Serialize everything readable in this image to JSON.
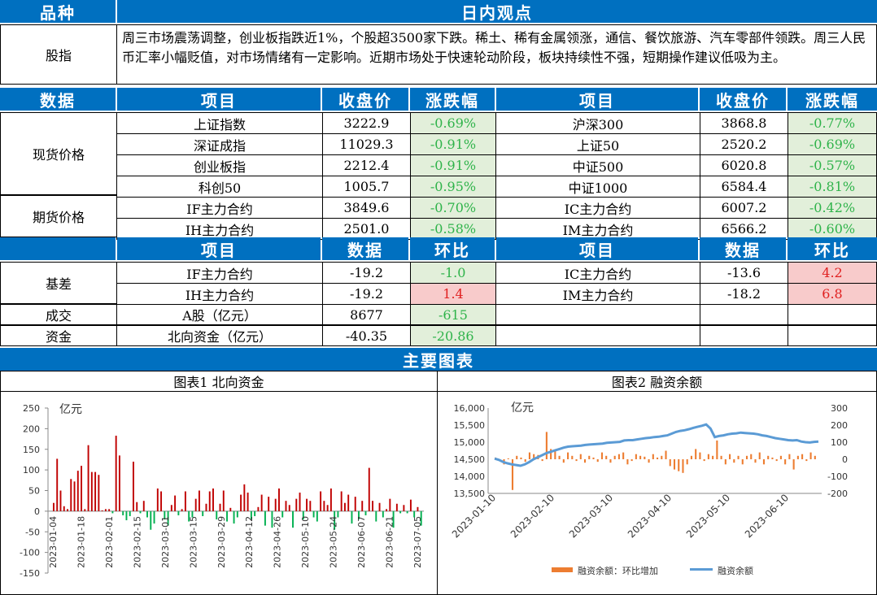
{
  "header": {
    "left": "品种",
    "right": "日内观点"
  },
  "view": {
    "label": "股指",
    "text": "周三市场震荡调整，创业板指跌近1%，个股超3500家下跌。稀土、稀有金属领涨，通信、餐饮旅游、汽车零部件领跌。周三人民币汇率小幅贬值，对市场情绪有一定影响。近期市场处于快速轮动阶段，板块持续性不强，短期操作建议低吸为主。"
  },
  "table1": {
    "head": [
      "数据",
      "项目",
      "收盘价",
      "涨跌幅",
      "项目",
      "收盘价",
      "涨跌幅"
    ],
    "group_spot": "现货价格",
    "group_fut": "期货价格",
    "rows": [
      [
        "上证指数",
        "3222.9",
        "-0.69%",
        "沪深300",
        "3868.8",
        "-0.77%"
      ],
      [
        "深证成指",
        "11029.3",
        "-0.91%",
        "上证50",
        "2520.2",
        "-0.69%"
      ],
      [
        "创业板指",
        "2212.4",
        "-0.91%",
        "中证500",
        "6020.8",
        "-0.57%"
      ],
      [
        "科创50",
        "1005.7",
        "-0.95%",
        "中证1000",
        "6584.4",
        "-0.81%"
      ],
      [
        "IF主力合约",
        "3849.6",
        "-0.70%",
        "IC主力合约",
        "6007.2",
        "-0.42%"
      ],
      [
        "IH主力合约",
        "2501.0",
        "-0.58%",
        "IM主力合约",
        "6566.2",
        "-0.60%"
      ]
    ]
  },
  "table2": {
    "head": [
      "项目",
      "数据",
      "环比",
      "项目",
      "数据",
      "环比"
    ],
    "basis_label": "基差",
    "trade_label": "成交",
    "fund_label": "资金",
    "basis": [
      [
        "IF主力合约",
        "-19.2",
        "-1.0",
        "IC主力合约",
        "-13.6",
        "4.2"
      ],
      [
        "IH主力合约",
        "-19.2",
        "1.4",
        "IM主力合约",
        "-18.2",
        "6.8"
      ]
    ],
    "trade": [
      "A股（亿元）",
      "8677",
      "-615"
    ],
    "fund": [
      "北向资金（亿元）",
      "-40.35",
      "-20.86"
    ]
  },
  "charts_header": "主要图表",
  "chart_titles": [
    "图表1 北向资金",
    "图表2 融资余额"
  ],
  "colors": {
    "blue": "#0070c0",
    "red_bar": "#c00000",
    "green_bar": "#00b050",
    "orange": "#ed7d31",
    "line_blue": "#5b9bd5"
  },
  "chart_data": [
    {
      "type": "bar",
      "title": "图表1 北向资金",
      "ylabel": "亿元",
      "ylim": [
        -150,
        250
      ],
      "yticks": [
        250,
        200,
        150,
        100,
        50,
        0,
        -50,
        -100,
        -150
      ],
      "xticks": [
        "2023-01-04",
        "2023-01-18",
        "2023-02-01",
        "2023-02-15",
        "2023-03-01",
        "2023-03-15",
        "2023-03-29",
        "2023-04-12",
        "2023-04-26",
        "2023-05-10",
        "2023-05-24",
        "2023-06-07",
        "2023-06-21",
        "2023-07-05"
      ],
      "values": [
        20,
        127,
        50,
        12,
        5,
        78,
        72,
        98,
        110,
        5,
        160,
        95,
        95,
        88,
        2,
        5,
        5,
        -5,
        183,
        135,
        -10,
        -22,
        -12,
        120,
        22,
        -5,
        25,
        -15,
        -45,
        -30,
        55,
        48,
        -20,
        -35,
        15,
        38,
        -10,
        5,
        48,
        -25,
        -15,
        30,
        50,
        -12,
        18,
        48,
        55,
        -20,
        18,
        50,
        -25,
        8,
        -30,
        -15,
        40,
        65,
        45,
        -20,
        -12,
        10,
        40,
        -35,
        35,
        -40,
        30,
        55,
        -15,
        25,
        15,
        -40,
        30,
        45,
        -20,
        30,
        25,
        -15,
        -25,
        48,
        25,
        15,
        55,
        -45,
        -15,
        48,
        20,
        40,
        -30,
        35,
        -20,
        25,
        -10,
        105,
        25,
        -25,
        20,
        -15,
        5,
        30,
        -40,
        18,
        -5,
        15,
        -5,
        28,
        -15,
        10,
        -35
      ]
    },
    {
      "type": "line",
      "title": "图表2 融资余额",
      "ylabel": "亿元",
      "ylim_left": [
        13500,
        16000
      ],
      "yticks_left": [
        "16,000",
        "15,500",
        "15,000",
        "14,500",
        "14,000",
        "13,500"
      ],
      "ylim_right": [
        -200,
        300
      ],
      "yticks_right": [
        "300",
        "200",
        "100",
        "0",
        "-100",
        "-200"
      ],
      "xticks": [
        "2023-01-10",
        "2023-02-10",
        "2023-03-10",
        "2023-04-10",
        "2023-05-10",
        "2023-06-10"
      ],
      "legend": [
        "融资余额：环比增加",
        "融资余额"
      ],
      "line": [
        14520,
        14480,
        14420,
        14380,
        14350,
        14330,
        14310,
        14350,
        14420,
        14500,
        14560,
        14620,
        14680,
        14720,
        14760,
        14800,
        14840,
        14870,
        14880,
        14890,
        14900,
        14920,
        14930,
        14940,
        14950,
        14960,
        14980,
        14990,
        15000,
        15010,
        15050,
        15060,
        15060,
        15080,
        15100,
        15120,
        15130,
        15150,
        15160,
        15180,
        15200,
        15250,
        15300,
        15330,
        15350,
        15380,
        15420,
        15450,
        15480,
        15520,
        15400,
        15150,
        15180,
        15200,
        15230,
        15250,
        15260,
        15280,
        15270,
        15260,
        15250,
        15230,
        15200,
        15180,
        15150,
        15120,
        15100,
        15080,
        15060,
        15050,
        15060,
        15020,
        15000,
        14990,
        15010,
        15020
      ],
      "bars": [
        10,
        -5,
        -30,
        5,
        -180,
        20,
        10,
        -15,
        40,
        30,
        25,
        -10,
        160,
        60,
        50,
        20,
        -20,
        40,
        20,
        -10,
        30,
        -20,
        20,
        10,
        -15,
        40,
        20,
        -20,
        20,
        30,
        40,
        -30,
        -10,
        30,
        20,
        15,
        -20,
        30,
        10,
        20,
        50,
        -40,
        -60,
        -70,
        -80,
        -30,
        20,
        60,
        40,
        -10,
        30,
        20,
        110,
        20,
        -30,
        30,
        -20,
        20,
        -30,
        20,
        30,
        -20,
        40,
        -30,
        20,
        10,
        -10,
        20,
        -30,
        30,
        -60,
        20,
        30,
        -10,
        40,
        20
      ]
    }
  ]
}
